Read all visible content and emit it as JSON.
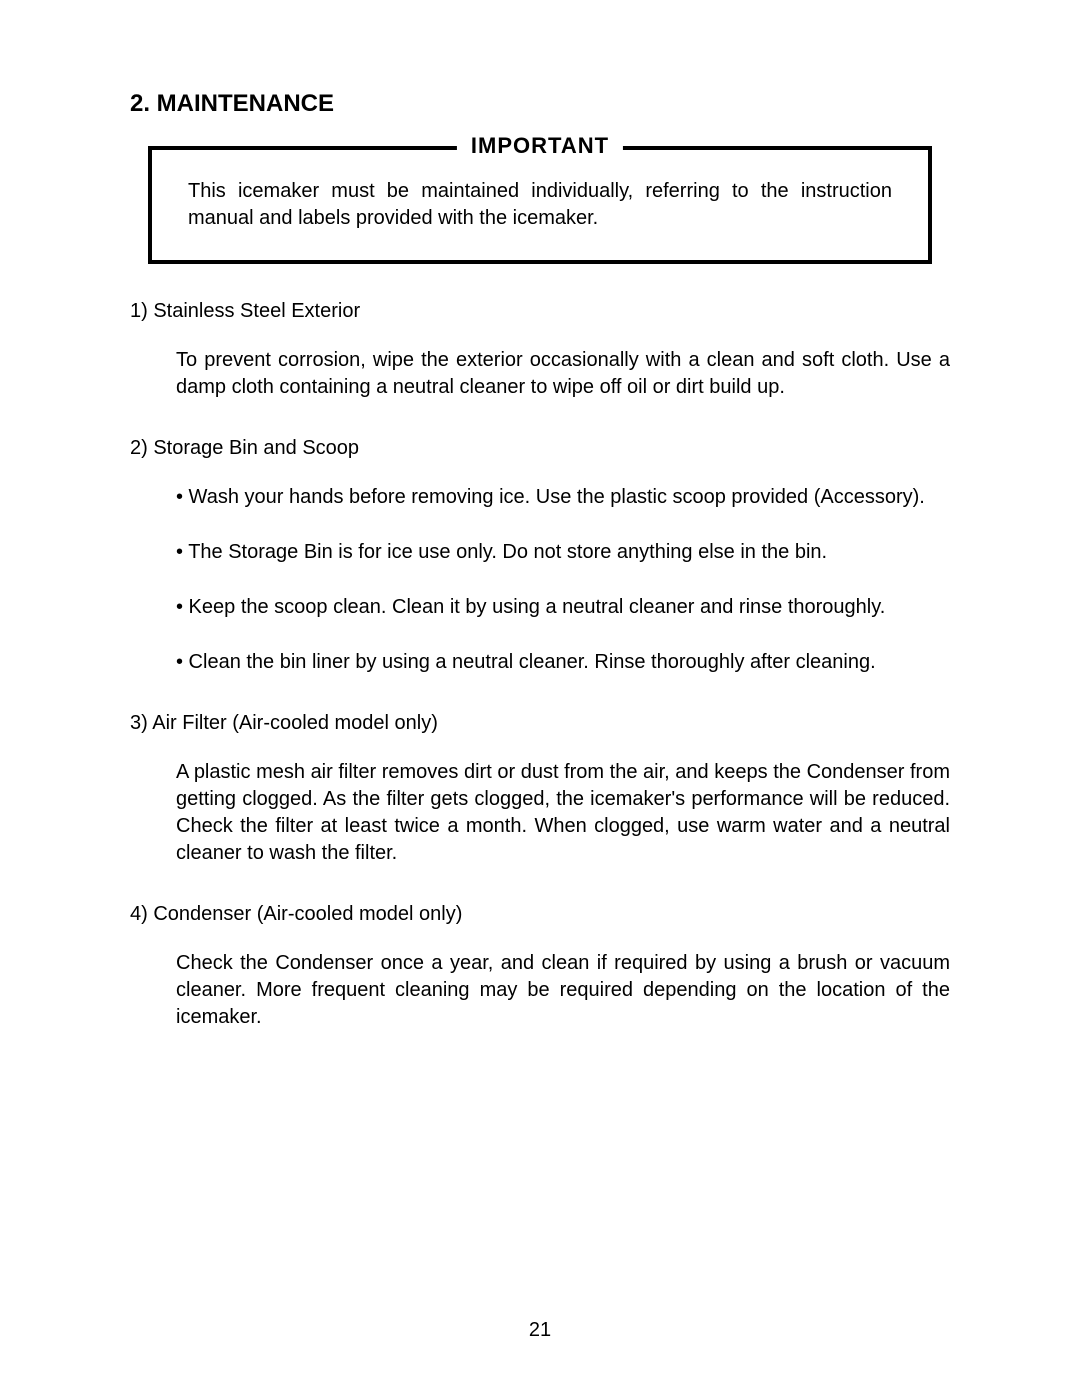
{
  "page": {
    "section_title": "2. MAINTENANCE",
    "page_number": "21",
    "important": {
      "legend": "IMPORTANT",
      "body": "This icemaker must be maintained individually, referring to the instruction manual and labels provided with the icemaker."
    },
    "items": [
      {
        "heading": "1) Stainless Steel Exterior",
        "body": "To prevent corrosion, wipe the exterior occasionally with a clean and soft cloth.  Use a damp cloth containing a neutral cleaner to wipe off oil or dirt build up."
      },
      {
        "heading": "2) Storage Bin and Scoop",
        "bullets": [
          "• Wash your hands before removing ice.  Use the plastic scoop provided (Accessory).",
          "• The Storage Bin is for ice use only.  Do not store anything else in the bin.",
          "• Keep the scoop clean.  Clean it by using a neutral cleaner and rinse thoroughly.",
          "• Clean the bin liner by using a neutral cleaner.  Rinse thoroughly after cleaning."
        ]
      },
      {
        "heading": "3) Air Filter (Air-cooled model only)",
        "body": "A plastic mesh air filter removes dirt or dust from the air, and keeps the Condenser from getting clogged.  As the filter gets clogged, the icemaker's performance will be reduced.  Check the filter at least twice a month.  When clogged, use warm water and a neutral cleaner to wash the filter."
      },
      {
        "heading": "4) Condenser (Air-cooled model only)",
        "body": "Check the Condenser once a year, and clean if required by using a brush or vacuum cleaner.  More frequent cleaning may be required depending on the location of the icemaker."
      }
    ]
  }
}
